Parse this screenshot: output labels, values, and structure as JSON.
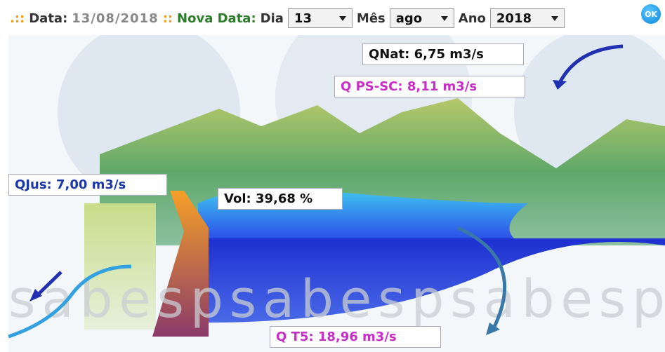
{
  "header": {
    "prefix": ".::",
    "data_label": "Data:",
    "date": "13/08/2018",
    "separator": "::",
    "new_date_label": "Nova Data:",
    "day_label": "Dia",
    "day": "13",
    "month_label": "Mês",
    "month": "ago",
    "year_label": "Ano",
    "year": "2018",
    "ok": "OK"
  },
  "labels": {
    "qnat": "QNat: 6,75 m3/s",
    "qps_sc": "Q PS-SC: 8,11 m3/s",
    "qjus": "QJus: 7,00 m3/s",
    "vol": "Vol: 39,68 %",
    "qt5": "Q T5: 18,96 m3/s"
  },
  "watermark": "sabespsabespsabesp"
}
